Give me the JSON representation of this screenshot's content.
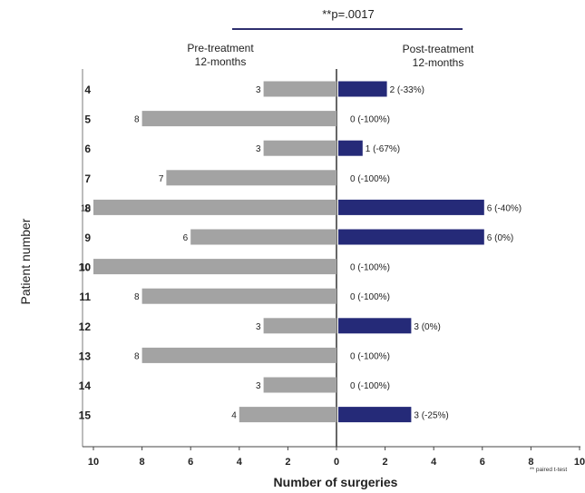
{
  "chart_data": {
    "type": "bar",
    "orientation": "horizontal-diverging",
    "annotation": "**p=.0017",
    "group_labels": {
      "left": [
        "Pre-treatment",
        "12-months"
      ],
      "right": [
        "Post-treatment",
        "12-months"
      ]
    },
    "ylabel": "Patient number",
    "xlabel": "Number of surgeries",
    "footnote": "** paired t-test",
    "xlim": [
      -10,
      10
    ],
    "x_ticks": [
      "10",
      "8",
      "6",
      "4",
      "2",
      "0",
      "2",
      "4",
      "6",
      "8",
      "10"
    ],
    "categories": [
      "4",
      "5",
      "6",
      "7",
      "8",
      "9",
      "10",
      "11",
      "12",
      "13",
      "14",
      "15"
    ],
    "series": [
      {
        "name": "Pre-treatment 12-months",
        "color": "#a3a3a3",
        "values": [
          3,
          8,
          3,
          7,
          10,
          6,
          10,
          8,
          3,
          8,
          3,
          4
        ],
        "labels": [
          "3",
          "8",
          "3",
          "7",
          "10",
          "6",
          "10",
          "8",
          "3",
          "8",
          "3",
          "4"
        ]
      },
      {
        "name": "Post-treatment 12-months",
        "color": "#252a78",
        "values": [
          2,
          0,
          1,
          0,
          6,
          6,
          0,
          0,
          3,
          0,
          0,
          3
        ],
        "labels": [
          "2 (-33%)",
          "0 (-100%)",
          "1 (-67%)",
          "0 (-100%)",
          "6 (-40%)",
          "6 (0%)",
          "0 (-100%)",
          "0  (-100%)",
          "3 (0%)",
          "0  (-100%)",
          "0 (-100%)",
          "3 (-25%)"
        ]
      }
    ]
  }
}
